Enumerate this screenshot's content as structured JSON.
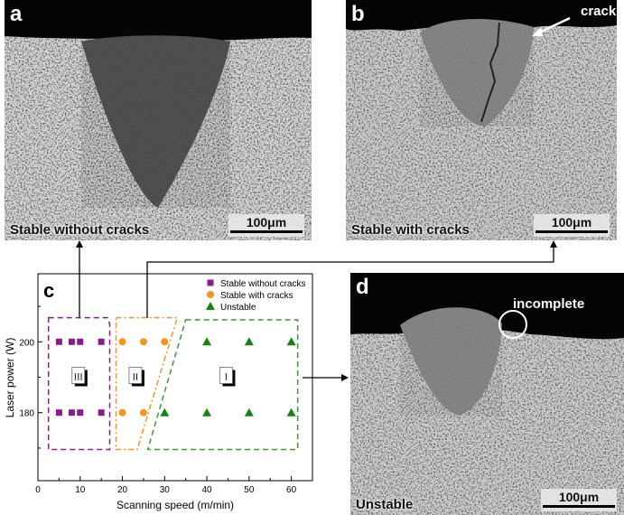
{
  "panels": {
    "a": {
      "label": "a",
      "caption": "Stable without cracks",
      "scale": "100μm"
    },
    "b": {
      "label": "b",
      "caption": "Stable with cracks",
      "scale": "100μm",
      "annotation": "cracks"
    },
    "d": {
      "label": "d",
      "caption": "Unstable",
      "scale": "100μm",
      "annotation": "incomplete"
    }
  },
  "chart_data": {
    "type": "scatter",
    "panel_label": "c",
    "xlabel": "Scanning speed (m/min)",
    "ylabel": "Laser power (W)",
    "xlim": [
      0,
      65
    ],
    "ylim": [
      160.8,
      219.2
    ],
    "xticks": [
      0,
      10,
      20,
      30,
      40,
      50,
      60
    ],
    "yticks": [
      180,
      200
    ],
    "grid": false,
    "legend_position": "top-right",
    "series": [
      {
        "name": "Stable without cracks",
        "marker": "square",
        "color": "#8b1a8b",
        "points": [
          [
            5,
            200
          ],
          [
            8,
            200
          ],
          [
            10,
            200
          ],
          [
            15,
            200
          ],
          [
            5,
            180
          ],
          [
            8,
            180
          ],
          [
            10,
            180
          ],
          [
            15,
            180
          ]
        ]
      },
      {
        "name": "Stable with cracks",
        "marker": "circle",
        "color": "#f7941d",
        "points": [
          [
            20,
            200
          ],
          [
            25,
            200
          ],
          [
            30,
            200
          ],
          [
            20,
            180
          ],
          [
            25,
            180
          ]
        ]
      },
      {
        "name": "Unstable",
        "marker": "triangle",
        "color": "#13850f",
        "points": [
          [
            40,
            200
          ],
          [
            50,
            200
          ],
          [
            60,
            200
          ],
          [
            30,
            180
          ],
          [
            40,
            180
          ],
          [
            50,
            180
          ],
          [
            60,
            180
          ]
        ]
      }
    ],
    "regions": [
      {
        "label": "III",
        "color": "#8b1a8b",
        "style": "dashed",
        "polygon": [
          [
            2.5,
            206.8
          ],
          [
            16.5,
            206.8
          ],
          [
            17,
            205
          ],
          [
            17,
            169.6
          ],
          [
            2.5,
            169.6
          ]
        ],
        "label_at": [
          10,
          190
        ]
      },
      {
        "label": "II",
        "color": "#f7941d",
        "style": "dashdot",
        "polygon": [
          [
            18.5,
            206.8
          ],
          [
            33,
            206.8
          ],
          [
            23.5,
            169.6
          ],
          [
            18.5,
            169.6
          ]
        ],
        "label_at": [
          23.5,
          190
        ]
      },
      {
        "label": "I",
        "color": "#3a9a2e",
        "style": "dashed",
        "polygon": [
          [
            35,
            206.2
          ],
          [
            61.5,
            206.2
          ],
          [
            61.5,
            169.6
          ],
          [
            26,
            169.6
          ]
        ],
        "label_at": [
          45,
          190
        ]
      }
    ]
  }
}
